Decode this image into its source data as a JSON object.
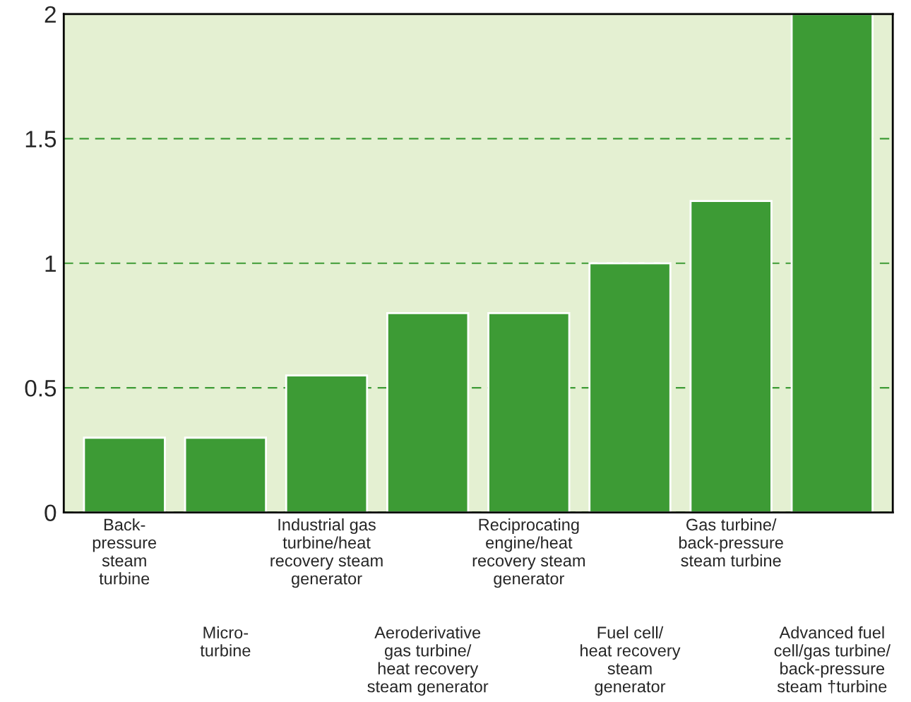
{
  "chart_data": {
    "type": "bar",
    "categories": [
      "Back-\npressure\nsteam\nturbine",
      "Micro-\nturbine",
      "Industrial gas\nturbine/heat\nrecovery steam\ngenerator",
      "Aeroderivative\ngas turbine/\nheat recovery\nsteam generator",
      "Reciprocating\nengine/heat\nrecovery steam\ngenerator",
      "Fuel cell/\nheat recovery\nsteam\ngenerator",
      "Gas turbine/\nback-pressure\nsteam turbine",
      "Advanced fuel\ncell/gas turbine/\nback-pressure\nsteam †turbine"
    ],
    "values": [
      0.3,
      0.3,
      0.55,
      0.8,
      0.8,
      1.0,
      1.25,
      2.0
    ],
    "color": "#3d9b35",
    "ylim": [
      0,
      2
    ],
    "yticks": [
      0,
      0.5,
      1,
      1.5,
      2
    ],
    "grid": "y"
  }
}
